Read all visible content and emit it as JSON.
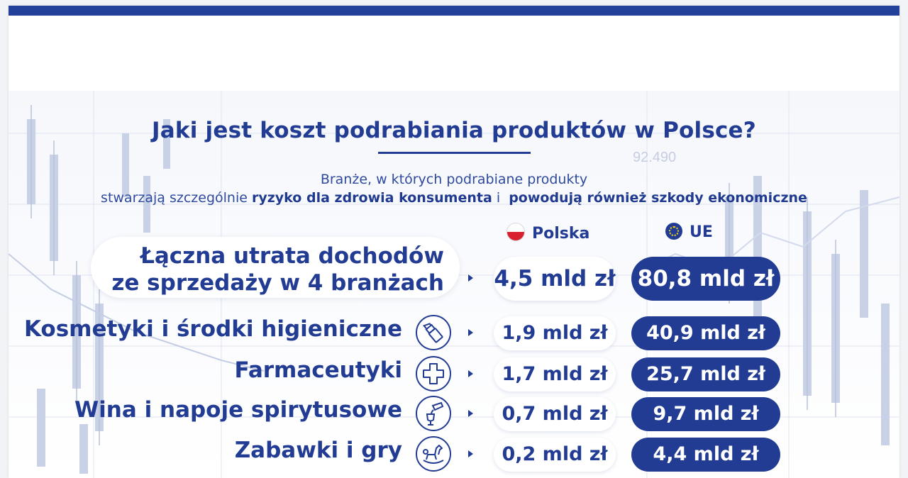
{
  "colors": {
    "brand": "#233c93",
    "flag_red": "#d8202f"
  },
  "title": "Jaki jest koszt podrabiania produktów w Polsce?",
  "subtitle": {
    "line1": "Branże, w których podrabiane produkty",
    "line2_start": "stwarzają szczególnie",
    "line2_bold1": "ryzyko dla zdrowia konsumenta",
    "line2_mid": "i",
    "line2_bold2": "powodują również szkody ekonomiczne"
  },
  "columns": {
    "pl": "Polska",
    "eu": "UE"
  },
  "total": {
    "line1": "Łączna utrata dochodów",
    "line2": "ze sprzedaży w 4 branżach",
    "pl": "4,5 mld zł",
    "eu": "80,8 mld zł"
  },
  "rows": [
    {
      "label": "Kosmetyki i środki higieniczne",
      "icon": "lipstick-icon",
      "pl": "1,9 mld zł",
      "eu": "40,9 mld zł"
    },
    {
      "label": "Farmaceutyki",
      "icon": "medical-cross-icon",
      "pl": "1,7 mld zł",
      "eu": "25,7 mld zł"
    },
    {
      "label": "Wina i napoje spirytusowe",
      "icon": "wine-pour-icon",
      "pl": "0,7 mld zł",
      "eu": "9,7 mld zł"
    },
    {
      "label": "Zabawki i gry",
      "icon": "rocking-horse-icon",
      "pl": "0,2 mld zł",
      "eu": "4,4 mld zł"
    }
  ]
}
